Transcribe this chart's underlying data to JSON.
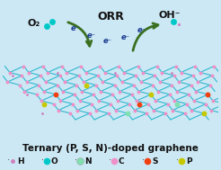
{
  "title": "Ternary (P, S, N)-doped graphene",
  "background_color": "#cce8f4",
  "legend_items": [
    {
      "label": "H",
      "color": "#d080c0",
      "size": 3.5
    },
    {
      "label": "O",
      "color": "#00c8c8",
      "size": 5.5
    },
    {
      "label": "N",
      "color": "#80e0b0",
      "size": 5.5
    },
    {
      "label": "C",
      "color": "#f090c8",
      "size": 5.5
    },
    {
      "label": "S",
      "color": "#f04010",
      "size": 5.5
    },
    {
      "label": "P",
      "color": "#c8c800",
      "size": 5.5
    }
  ],
  "orr_label": "ORR",
  "o2_label": "O₂",
  "oh_label": "OH⁻",
  "electron_label": "e⁻",
  "graphene_edge_color": "#30b8d0",
  "graphene_node_color": "#f090c8",
  "s_color": "#f04010",
  "p_color": "#c8c800",
  "n_color": "#80e0b0",
  "arrow_color": "#3a7020",
  "o_molecule_color": "#00c8c8",
  "h_color": "#d080c0",
  "title_fontsize": 7.5,
  "legend_fontsize": 6.5,
  "orr_fontsize": 9,
  "o2_fontsize": 8,
  "e_fontsize": 6
}
